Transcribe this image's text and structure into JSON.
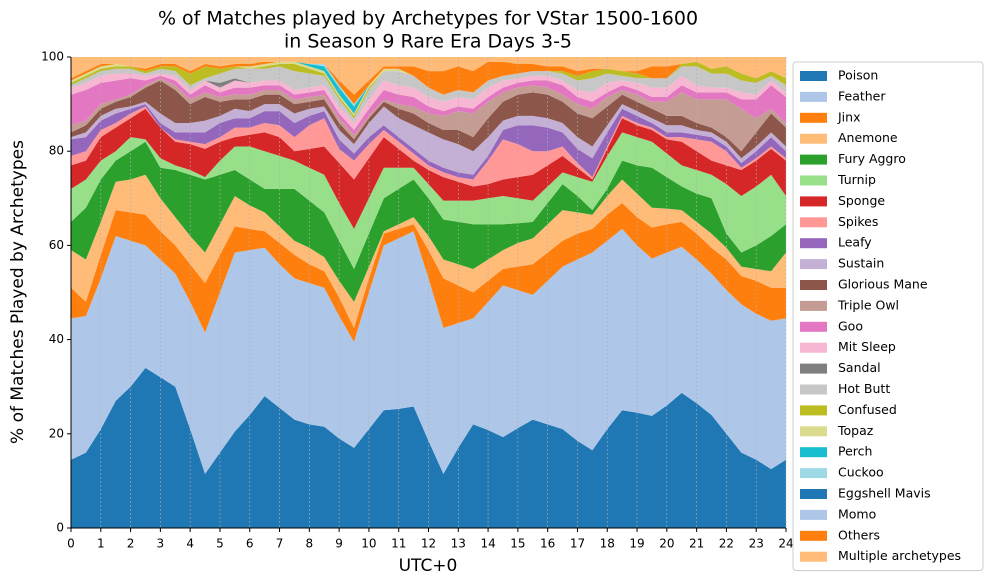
{
  "chart_data": {
    "type": "stacked_area",
    "title": [
      "% of Matches played by Archetypes for VStar 1500-1600",
      "in Season 9 Rare Era Days 3-5"
    ],
    "xlabel": "UTC+0",
    "ylabel": "% of Matches Played by Archetypes",
    "x": [
      0,
      0.5,
      1,
      1.5,
      2,
      2.5,
      3,
      3.5,
      4,
      4.5,
      5,
      5.5,
      6,
      6.5,
      7,
      7.5,
      8,
      8.5,
      9,
      9.5,
      10,
      10.5,
      11,
      11.5,
      12,
      12.5,
      13,
      13.5,
      14,
      14.5,
      15,
      15.5,
      16,
      16.5,
      17,
      17.5,
      18,
      18.5,
      19,
      19.5,
      20,
      20.5,
      21,
      21.5,
      22,
      22.5,
      23,
      23.5,
      24
    ],
    "xlim": [
      0,
      24
    ],
    "ylim": [
      0,
      100
    ],
    "xticks": [
      0,
      1,
      2,
      3,
      4,
      5,
      6,
      7,
      8,
      9,
      10,
      11,
      12,
      13,
      14,
      15,
      16,
      17,
      18,
      19,
      20,
      21,
      22,
      23,
      24
    ],
    "yticks": [
      0,
      20,
      40,
      60,
      80,
      100
    ],
    "grid": "x",
    "legend": "outside right",
    "series": [
      {
        "name": "Poison",
        "color": "#1f77b4",
        "values": [
          14.5,
          16,
          21,
          27,
          30,
          34,
          32,
          30,
          21,
          11.5,
          16,
          20.5,
          24,
          28,
          25.5,
          23,
          22,
          21.5,
          19,
          17,
          21,
          25,
          25.3,
          25.8,
          18.5,
          11.5,
          17,
          22,
          20.8,
          19.3,
          21.2,
          23,
          22,
          21,
          18.5,
          16.5,
          21,
          25,
          24.5,
          23.8,
          26,
          28.7,
          26.5,
          24,
          20,
          16,
          14.5,
          12.5,
          14.5
        ]
      },
      {
        "name": "Feather",
        "color": "#aec7e8",
        "values": [
          30,
          29,
          32,
          35,
          31,
          26,
          25,
          24,
          27,
          30,
          34,
          38,
          35,
          31.5,
          30.5,
          30,
          30,
          29.5,
          26,
          22.5,
          29,
          35,
          36.2,
          37.2,
          34.5,
          31,
          26.5,
          22.5,
          27.2,
          32.2,
          29.3,
          26.5,
          30.5,
          34.5,
          38.5,
          42,
          40,
          38.5,
          35.5,
          33.4,
          32.5,
          31,
          30.5,
          30,
          30.5,
          31.5,
          31,
          31.5,
          30
        ]
      },
      {
        "name": "Jinx",
        "color": "#ff7f0e",
        "values": [
          6.5,
          3,
          5,
          5.5,
          6,
          6.5,
          6,
          6,
          8,
          10.5,
          8,
          5.5,
          4.5,
          3.5,
          4.5,
          5,
          4,
          3.5,
          4,
          3,
          3,
          2.5,
          2,
          1.5,
          6,
          10.5,
          8,
          5.5,
          4.5,
          3.5,
          5,
          6.5,
          6,
          5.5,
          5.5,
          5,
          5.5,
          5.5,
          6,
          6.6,
          6,
          5.3,
          5.5,
          5.5,
          6.5,
          6,
          7,
          7,
          6.5
        ]
      },
      {
        "name": "Anemone",
        "color": "#ffbb78",
        "values": [
          8,
          9,
          7,
          6,
          7,
          8.5,
          7,
          6,
          6,
          6.5,
          6.5,
          6.5,
          5,
          4,
          3.5,
          3,
          3.5,
          3,
          3.5,
          5.5,
          2.5,
          0.5,
          1,
          1.5,
          3,
          4,
          4.5,
          5,
          4.5,
          4,
          5,
          5.5,
          6,
          6.5,
          4.5,
          3,
          4,
          5,
          5,
          4.2,
          3.3,
          2.5,
          2.5,
          3,
          2.5,
          2,
          2.5,
          3.5,
          7.5
        ]
      },
      {
        "name": "Fury Aggro",
        "color": "#2ca02c",
        "values": [
          6,
          11,
          9,
          4.5,
          6,
          7,
          6.5,
          10,
          13,
          15.5,
          10.5,
          5.5,
          5.5,
          5,
          8,
          11,
          10,
          9.5,
          8.5,
          7,
          7,
          7,
          7.5,
          8,
          8,
          8.5,
          9,
          9.5,
          7.5,
          5.5,
          4.2,
          3.5,
          4.5,
          5.5,
          3.5,
          1,
          1.5,
          4,
          6,
          8.5,
          6.7,
          5,
          6,
          7.5,
          3,
          3,
          5,
          7.5,
          6
        ]
      },
      {
        "name": "Turnip",
        "color": "#98df8a",
        "values": [
          7,
          6,
          4,
          2,
          3,
          0.5,
          2,
          1,
          1,
          0.5,
          3,
          5,
          7,
          8,
          7,
          6,
          7,
          8,
          8,
          8.5,
          7.5,
          6.5,
          4.5,
          2.5,
          3,
          4,
          4.5,
          5,
          5.5,
          6,
          5.3,
          4.5,
          3.5,
          2.5,
          4,
          6,
          7,
          6,
          6,
          5.5,
          5,
          4.5,
          5,
          5,
          10.5,
          12,
          12.5,
          13,
          6
        ]
      },
      {
        "name": "Sponge",
        "color": "#d62728",
        "values": [
          5,
          4,
          5,
          5,
          4,
          6.5,
          6.5,
          5,
          5.5,
          6,
          4,
          2,
          2.5,
          4,
          4,
          2,
          4,
          6,
          8.5,
          10.5,
          8.5,
          6.5,
          4,
          1.5,
          3,
          5,
          4,
          3,
          3,
          3.5,
          4.5,
          5.5,
          4.5,
          3.5,
          2,
          0.5,
          1.5,
          3,
          2.5,
          2.5,
          3,
          5,
          4,
          3,
          4,
          5.5,
          5.5,
          5.5,
          7.5
        ]
      },
      {
        "name": "Spikes",
        "color": "#ff9896",
        "values": [
          2,
          2,
          1.5,
          1,
          1,
          0.5,
          0,
          0.5,
          0.5,
          1,
          1,
          2,
          1.5,
          2,
          2.5,
          3,
          5,
          6,
          3,
          4,
          3,
          1.5,
          1.5,
          1.5,
          1,
          1,
          1,
          1.5,
          5,
          8.5,
          7,
          5,
          3,
          2,
          1,
          0.5,
          0.5,
          0.5,
          0.5,
          0.5,
          0.5,
          1,
          2.5,
          4,
          3,
          0.5,
          0.5,
          0.5,
          0.5
        ]
      },
      {
        "name": "Leafy",
        "color": "#9467bd",
        "values": [
          3.5,
          3,
          2,
          2,
          1,
          0.5,
          1,
          1.5,
          2,
          2.5,
          3,
          2,
          2,
          2.5,
          3,
          3,
          2,
          1.5,
          2,
          1.5,
          1.5,
          1,
          1,
          1,
          1,
          1,
          1,
          1,
          1,
          2,
          4,
          5.5,
          5,
          3,
          3,
          4,
          3,
          1.5,
          1.5,
          1,
          1,
          1,
          1,
          1,
          1,
          1,
          1.5,
          2,
          1.5
        ]
      },
      {
        "name": "Sustain",
        "color": "#c5b0d5",
        "values": [
          0.5,
          1,
          1,
          1,
          0.5,
          0.5,
          2,
          2,
          2,
          2.5,
          1.5,
          2,
          1.5,
          1.5,
          1.5,
          2,
          1.5,
          1,
          2,
          2,
          3,
          4,
          4,
          5,
          6,
          6,
          6,
          5,
          4,
          2,
          2,
          2,
          2,
          2,
          2.5,
          2.5,
          1.5,
          1,
          1,
          1,
          1.5,
          1.5,
          1,
          1,
          1,
          1,
          1,
          1,
          1
        ]
      },
      {
        "name": "Glorious Mane",
        "color": "#8c564b",
        "values": [
          1,
          1.5,
          1.5,
          1.5,
          2,
          3,
          7,
          7,
          4,
          5,
          3,
          2,
          2.5,
          2,
          2,
          2,
          1.5,
          1.5,
          1.5,
          1,
          1,
          1,
          2,
          2.5,
          2,
          2,
          3,
          3,
          4,
          4,
          4.5,
          5,
          5,
          4.5,
          5,
          6,
          4,
          2,
          2,
          2,
          2,
          2,
          1.5,
          1,
          1,
          1.5,
          3,
          4,
          4
        ]
      },
      {
        "name": "Triple Owl",
        "color": "#c49c94",
        "values": [
          1.5,
          1,
          1,
          0.5,
          0.5,
          0.5,
          0.5,
          1,
          1,
          1,
          1,
          1,
          1,
          1,
          1,
          1,
          1,
          1,
          1,
          1,
          0.5,
          0.5,
          1,
          1.5,
          2,
          3,
          4,
          5,
          3.5,
          2,
          1.5,
          1.5,
          1.5,
          1.5,
          2,
          2,
          2,
          1,
          1.5,
          1.5,
          3,
          5,
          5,
          6,
          8,
          9,
          3,
          1,
          1
        ]
      },
      {
        "name": "Goo",
        "color": "#e377c2",
        "values": [
          6.5,
          6.5,
          4.5,
          4,
          3.5,
          1,
          0.5,
          1,
          1,
          1.5,
          1,
          1.5,
          1.5,
          1,
          1,
          1,
          1,
          1,
          1,
          1,
          1.5,
          2,
          2,
          2,
          1.5,
          1,
          1,
          1,
          1,
          1,
          1,
          1,
          1.5,
          2,
          1.5,
          1.5,
          1,
          1,
          1,
          1,
          1,
          1.5,
          1.5,
          1.5,
          1.5,
          2,
          4,
          5,
          5.5
        ]
      },
      {
        "name": "Mit Sleep",
        "color": "#f7b6d2",
        "values": [
          1.5,
          1.5,
          1.5,
          1.5,
          1,
          1,
          0.5,
          1,
          1,
          1,
          1,
          1.5,
          1,
          1,
          1,
          1,
          1,
          1,
          1.5,
          1.5,
          2,
          2,
          2,
          2,
          2,
          2,
          2,
          2,
          2,
          1.5,
          1,
          1,
          1,
          1,
          1.5,
          2,
          2,
          1,
          1.5,
          2,
          2,
          2,
          1.5,
          1,
          1,
          1.5,
          1,
          1,
          1
        ]
      },
      {
        "name": "Sandal",
        "color": "#7f7f7f",
        "values": [
          0,
          0,
          0,
          0,
          0,
          0,
          0,
          0,
          0,
          0,
          1,
          0.5,
          0,
          0,
          0,
          0,
          0,
          0,
          0,
          0,
          0,
          0,
          0,
          0,
          0,
          0,
          0,
          0,
          0,
          0,
          0,
          0,
          0,
          0,
          0,
          0,
          0,
          0,
          0,
          0,
          0,
          0,
          0,
          0,
          0,
          0,
          0,
          0,
          0
        ]
      },
      {
        "name": "Hot Butt",
        "color": "#c7c7c7",
        "values": [
          0.5,
          1,
          1,
          1,
          1,
          0.5,
          1,
          1,
          1,
          0.5,
          2,
          2,
          3,
          2.5,
          3,
          4,
          3,
          2,
          1.5,
          1,
          2,
          2,
          3,
          2.5,
          2,
          1.5,
          1.5,
          1.5,
          1.5,
          1,
          1,
          1,
          1,
          1.5,
          2,
          3,
          2,
          1,
          1,
          2,
          2,
          2,
          4,
          3,
          3,
          2.5,
          2.5,
          1,
          1.5
        ]
      },
      {
        "name": "Confused",
        "color": "#bcbd22",
        "values": [
          0.5,
          0.5,
          0.5,
          0.5,
          0.5,
          0.5,
          0.5,
          1,
          2.5,
          2.5,
          1,
          0.5,
          0,
          0.5,
          0.5,
          1.5,
          1,
          0.5,
          0.5,
          0.5,
          0.5,
          0,
          0,
          0,
          0,
          0,
          0,
          0,
          0,
          0,
          0,
          0,
          0,
          0.5,
          1,
          1.5,
          1,
          1,
          1,
          0,
          0,
          0.5,
          1,
          1,
          1.5,
          1.5,
          1,
          1,
          1.5
        ]
      },
      {
        "name": "Topaz",
        "color": "#dbdb8d",
        "values": [
          0.5,
          0.5,
          0.5,
          0.5,
          0,
          0,
          0,
          0,
          0,
          0,
          0,
          0,
          0.5,
          0.5,
          0.5,
          0.5,
          0.5,
          0.5,
          0.5,
          0.5,
          0.5,
          0.5,
          0.5,
          0,
          0,
          0,
          0,
          0,
          0,
          0,
          0,
          0,
          0,
          0,
          0,
          0,
          0,
          0,
          0,
          0,
          0,
          0,
          0,
          0,
          0,
          0,
          0,
          0,
          0
        ]
      },
      {
        "name": "Perch",
        "color": "#17becf",
        "values": [
          0,
          0,
          0,
          0,
          0,
          0,
          0,
          0,
          0,
          0,
          0,
          0,
          0,
          0,
          0,
          0,
          0.5,
          1,
          1.5,
          1.5,
          0,
          0,
          0,
          0,
          0,
          0,
          0,
          0,
          0,
          0,
          0,
          0,
          0,
          0,
          0,
          0,
          0,
          0,
          0,
          0,
          0,
          0,
          0,
          0,
          0,
          0,
          0,
          0,
          0
        ]
      },
      {
        "name": "Cuckoo",
        "color": "#9edae5",
        "values": [
          0,
          0,
          0,
          0,
          0,
          0,
          0,
          0,
          0,
          0,
          0,
          0,
          0,
          0,
          0,
          0,
          0,
          0.5,
          0.5,
          0.5,
          0,
          0,
          0,
          0,
          0,
          0,
          0,
          0,
          0,
          0,
          0,
          0,
          0,
          0,
          0,
          0,
          0,
          0,
          0,
          0,
          0,
          0,
          0,
          0,
          0,
          0,
          0,
          0,
          0
        ]
      },
      {
        "name": "Eggshell Mavis",
        "color": "#1f77b4",
        "values": [
          0,
          0,
          0,
          0,
          0,
          0,
          0,
          0,
          0,
          0,
          0,
          0,
          0,
          0,
          0,
          0,
          0,
          0,
          0,
          0,
          0,
          0,
          0,
          0,
          0,
          0,
          0,
          0,
          0,
          0,
          0,
          0,
          0,
          0,
          0,
          0,
          0,
          0,
          0,
          0,
          0,
          0,
          0,
          0,
          0,
          0,
          0,
          0,
          0
        ]
      },
      {
        "name": "Momo",
        "color": "#aec7e8",
        "values": [
          0,
          0,
          0,
          0,
          0,
          0,
          0,
          0,
          0,
          0,
          0,
          0,
          0,
          0,
          0,
          0,
          0,
          0,
          0,
          0,
          0,
          0,
          0,
          0,
          0,
          0,
          0,
          0,
          0,
          0,
          0,
          0,
          0,
          0,
          0,
          0,
          0,
          0,
          0,
          0,
          0,
          0,
          0,
          0,
          0,
          0,
          0,
          0,
          0
        ]
      },
      {
        "name": "Others",
        "color": "#ff7f0e",
        "values": [
          0.5,
          0.5,
          0.5,
          0,
          0,
          0.5,
          0.5,
          0.5,
          0.5,
          0.5,
          0.5,
          0.5,
          0.5,
          0.5,
          0,
          0,
          0,
          0,
          1,
          2,
          1,
          0.5,
          0.5,
          2,
          3.5,
          5,
          5,
          4.5,
          4,
          3,
          2,
          1.5,
          1,
          1,
          1,
          0.5,
          0,
          0,
          0.5,
          2.5,
          2.5,
          0,
          0,
          0,
          0,
          0,
          0,
          0,
          0
        ]
      },
      {
        "name": "Multiple archetypes",
        "color": "#ffbb78",
        "values": [
          4.5,
          3,
          1.5,
          1.5,
          2,
          2.5,
          1.5,
          1.5,
          3,
          1.5,
          2,
          1.5,
          1.5,
          1,
          1,
          1,
          1.5,
          1.5,
          5,
          8,
          5,
          2,
          2,
          2,
          3,
          3,
          2,
          3,
          1,
          1,
          1.5,
          1.5,
          2,
          2,
          3,
          2.5,
          2.5,
          3,
          3,
          2,
          2,
          1.5,
          1,
          2.5,
          2,
          3.5,
          4.5,
          3,
          4.5
        ]
      }
    ]
  }
}
